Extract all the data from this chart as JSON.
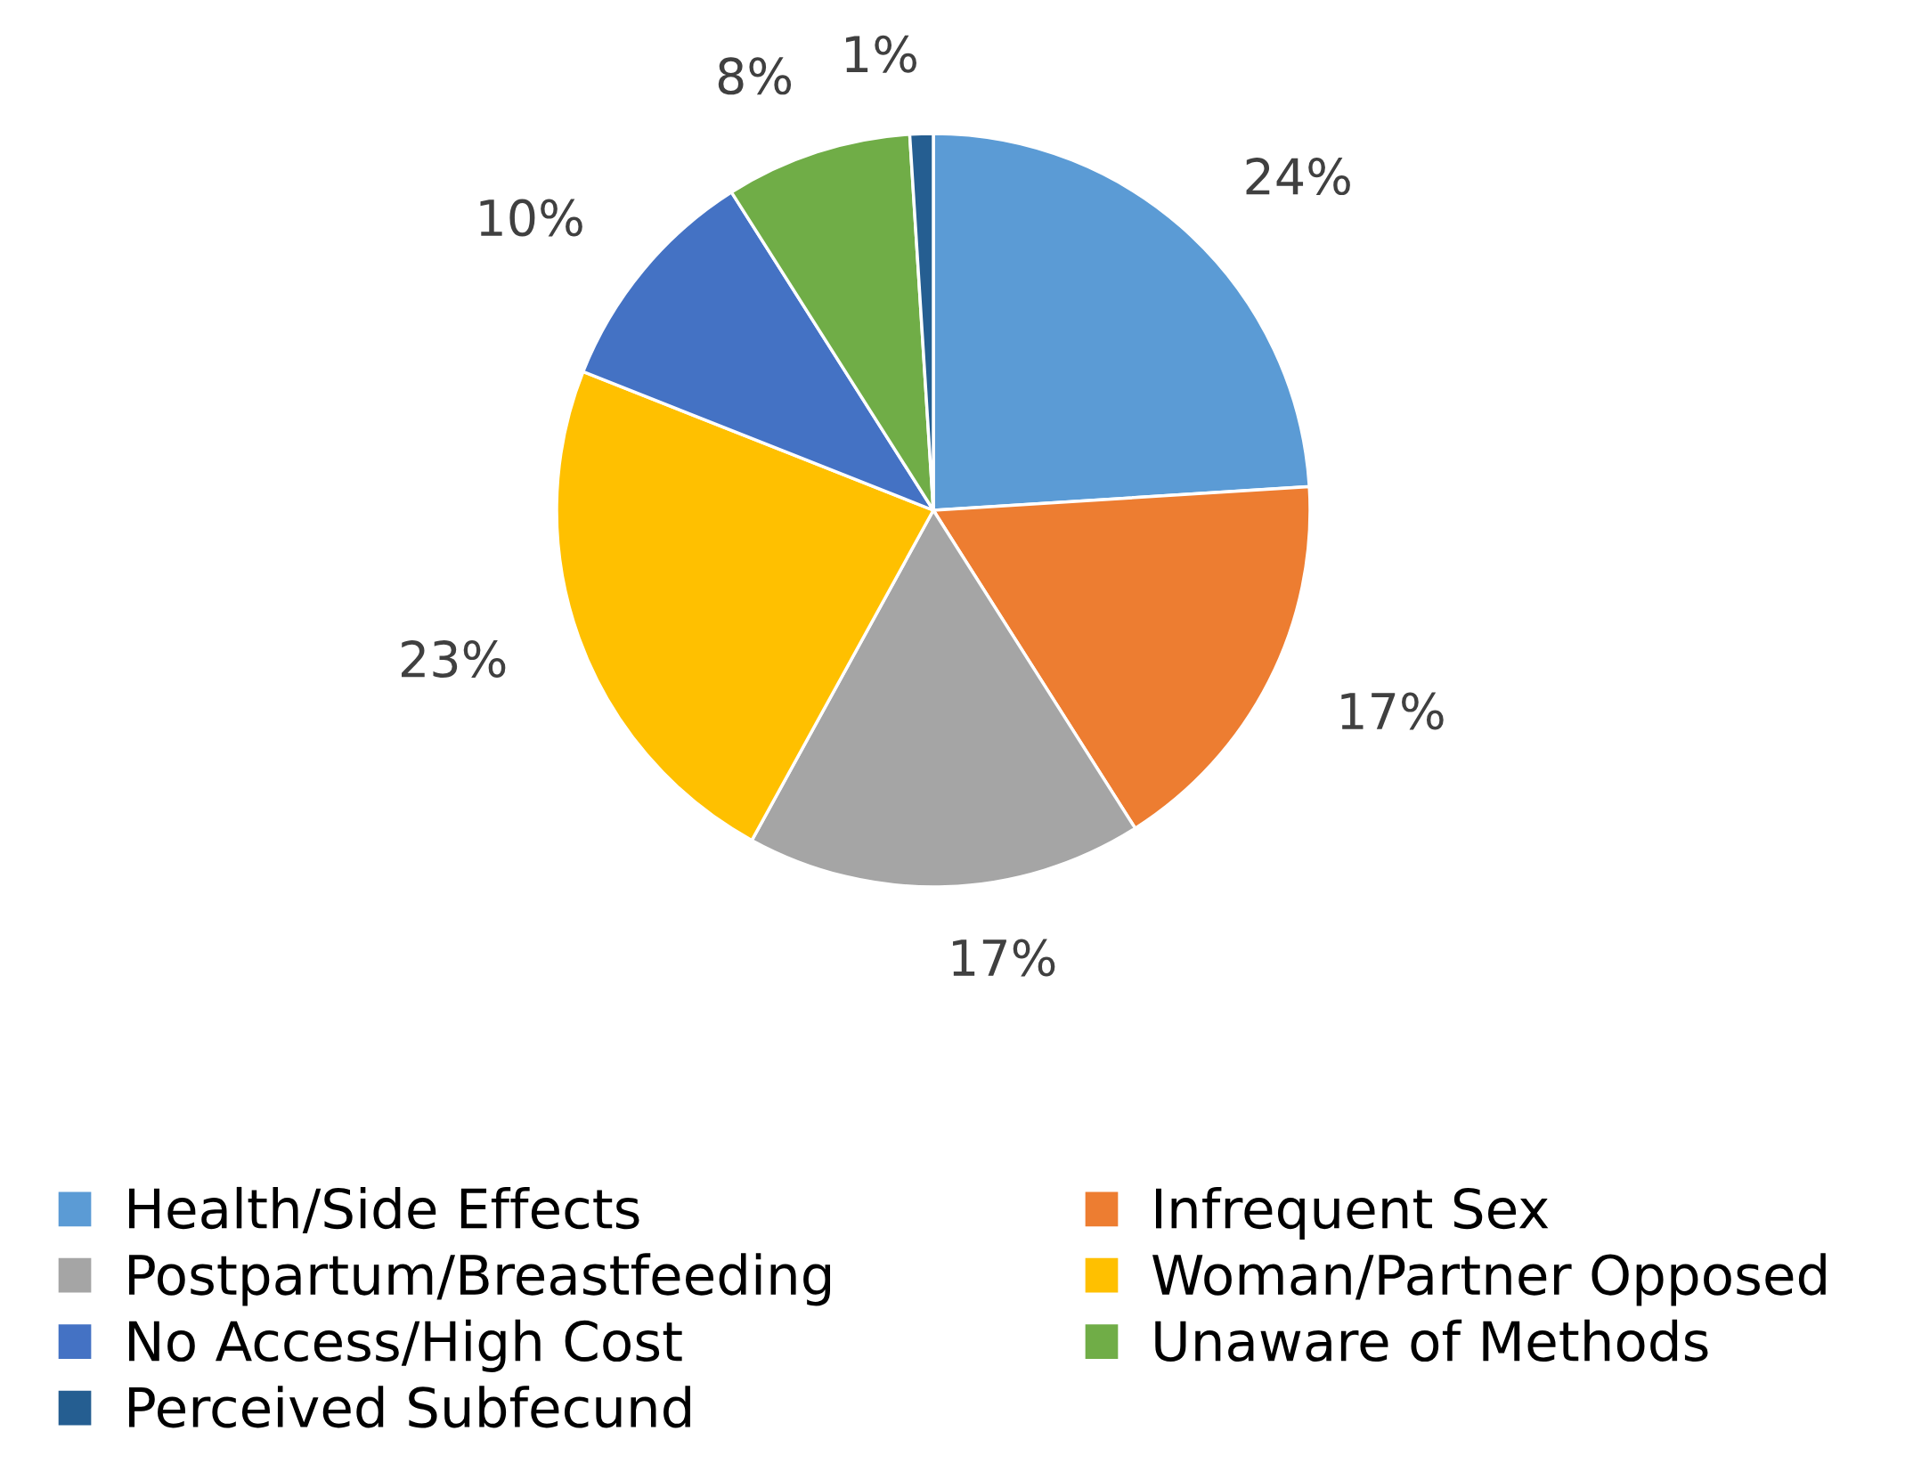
{
  "chart_data": {
    "type": "pie",
    "categories": [
      "Health/Side Effects",
      "Infrequent Sex",
      "Postpartum/Breastfeeding",
      "Woman/Partner Opposed",
      "No Access/High Cost",
      "Unaware of Methods",
      "Perceived Subfecund"
    ],
    "values": [
      24,
      17,
      17,
      23,
      10,
      8,
      1
    ],
    "colors": [
      "#5b9bd5",
      "#ed7d31",
      "#a5a5a5",
      "#ffc000",
      "#4472c4",
      "#70ad47",
      "#255e91"
    ],
    "value_labels": [
      "24%",
      "17%",
      "17%",
      "23%",
      "10%",
      "8%",
      "1%"
    ],
    "legend": "bottom"
  }
}
